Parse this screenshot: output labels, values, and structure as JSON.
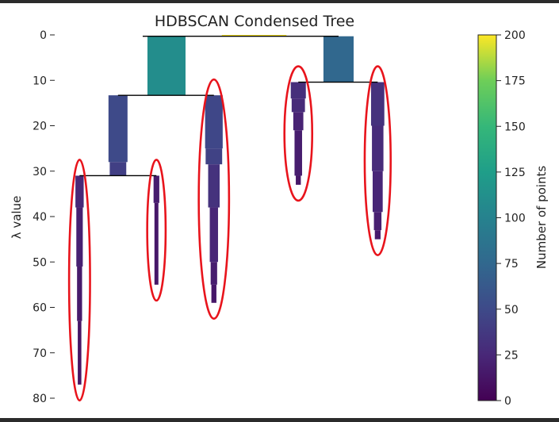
{
  "chart_data": {
    "type": "condensed-tree",
    "title": "HDBSCAN Condensed Tree",
    "ylabel": "λ value",
    "ylim": [
      0,
      80
    ],
    "y_inverted": true,
    "yticks": [
      "0",
      "10",
      "20",
      "30",
      "40",
      "50",
      "60",
      "70",
      "80"
    ],
    "colorbar": {
      "label": "Number of points",
      "range": [
        0,
        200
      ],
      "ticks": [
        "0",
        "25",
        "50",
        "75",
        "100",
        "125",
        "150",
        "175",
        "200"
      ],
      "colormap": "viridis"
    },
    "nodes": [
      {
        "id": "root",
        "lambda_birth": 0,
        "lambda_death": 0.3,
        "size": 200,
        "x_center": 50.0,
        "segments": [
          {
            "y0": 0,
            "y1": 0.3,
            "w": 18.0,
            "size": 200
          }
        ]
      },
      {
        "id": "A",
        "lambda_birth": 0.3,
        "lambda_death": 13.3,
        "size": 110,
        "x_center": 25.6,
        "segments": [
          {
            "y0": 0.3,
            "y1": 13.3,
            "w": 10.6,
            "size": 110
          }
        ]
      },
      {
        "id": "B",
        "lambda_birth": 0.3,
        "lambda_death": 10.4,
        "size": 75,
        "x_center": 73.5,
        "segments": [
          {
            "y0": 0.3,
            "y1": 10.4,
            "w": 8.4,
            "size": 75
          }
        ]
      },
      {
        "id": "A1",
        "lambda_birth": 13.3,
        "lambda_death": 31.0,
        "size": 50,
        "x_center": 12.1,
        "segments": [
          {
            "y0": 13.3,
            "y1": 28.0,
            "w": 5.3,
            "size": 50
          },
          {
            "y0": 28.0,
            "y1": 31.0,
            "w": 4.6,
            "size": 42
          }
        ]
      },
      {
        "id": "A2",
        "lambda_birth": 13.3,
        "lambda_death": 59.0,
        "size": 48,
        "x_center": 38.8,
        "segments": [
          {
            "y0": 13.3,
            "y1": 25.0,
            "w": 4.9,
            "size": 48
          },
          {
            "y0": 25.0,
            "y1": 28.5,
            "w": 4.6,
            "size": 44
          },
          {
            "y0": 28.5,
            "y1": 38.0,
            "w": 3.2,
            "size": 32
          },
          {
            "y0": 38.0,
            "y1": 50.0,
            "w": 2.3,
            "size": 24
          },
          {
            "y0": 50.0,
            "y1": 55.0,
            "w": 1.8,
            "size": 18
          },
          {
            "y0": 55.0,
            "y1": 59.0,
            "w": 1.4,
            "size": 14
          }
        ]
      },
      {
        "id": "B1",
        "lambda_birth": 10.4,
        "lambda_death": 33.0,
        "size": 30,
        "x_center": 62.3,
        "segments": [
          {
            "y0": 10.4,
            "y1": 14.0,
            "w": 4.2,
            "size": 30
          },
          {
            "y0": 14.0,
            "y1": 17.0,
            "w": 3.7,
            "size": 27
          },
          {
            "y0": 17.0,
            "y1": 21.0,
            "w": 2.8,
            "size": 22
          },
          {
            "y0": 21.0,
            "y1": 31.0,
            "w": 2.1,
            "size": 18
          },
          {
            "y0": 31.0,
            "y1": 33.0,
            "w": 1.4,
            "size": 14
          }
        ]
      },
      {
        "id": "B2",
        "lambda_birth": 10.4,
        "lambda_death": 45.0,
        "size": 32,
        "x_center": 84.4,
        "segments": [
          {
            "y0": 10.4,
            "y1": 20.0,
            "w": 3.7,
            "size": 32
          },
          {
            "y0": 20.0,
            "y1": 30.0,
            "w": 3.2,
            "size": 28
          },
          {
            "y0": 30.0,
            "y1": 39.0,
            "w": 2.8,
            "size": 24
          },
          {
            "y0": 39.0,
            "y1": 43.0,
            "w": 2.1,
            "size": 20
          },
          {
            "y0": 43.0,
            "y1": 45.0,
            "w": 1.6,
            "size": 16
          }
        ]
      },
      {
        "id": "A1a",
        "lambda_birth": 31.0,
        "lambda_death": 77.0,
        "size": 25,
        "x_center": 1.4,
        "segments": [
          {
            "y0": 31.0,
            "y1": 38.0,
            "w": 2.3,
            "size": 25
          },
          {
            "y0": 38.0,
            "y1": 51.0,
            "w": 1.8,
            "size": 20
          },
          {
            "y0": 51.0,
            "y1": 63.0,
            "w": 1.4,
            "size": 16
          },
          {
            "y0": 63.0,
            "y1": 77.0,
            "w": 1.0,
            "size": 12
          }
        ]
      },
      {
        "id": "A1b",
        "lambda_birth": 31.0,
        "lambda_death": 55.0,
        "size": 18,
        "x_center": 22.8,
        "segments": [
          {
            "y0": 31.0,
            "y1": 37.0,
            "w": 1.6,
            "size": 18
          },
          {
            "y0": 37.0,
            "y1": 55.0,
            "w": 1.1,
            "size": 14
          }
        ]
      }
    ],
    "highlighted_leaves": [
      "A1a",
      "A1b",
      "A2",
      "B1",
      "B2"
    ]
  }
}
